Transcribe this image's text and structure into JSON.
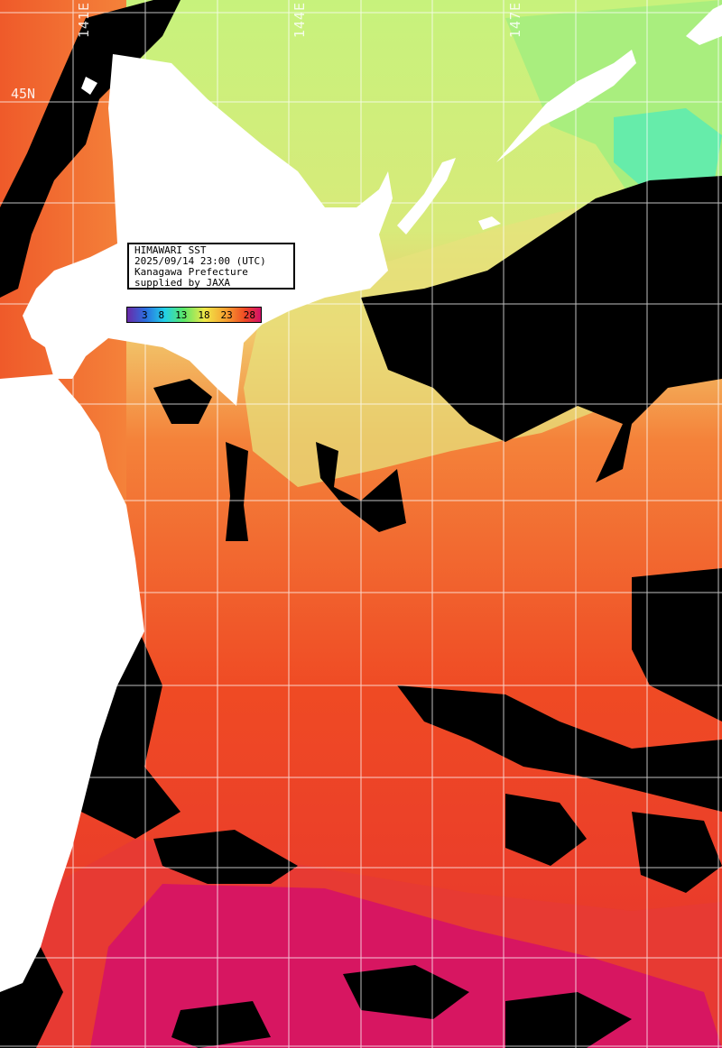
{
  "map": {
    "info_lines": [
      "HIMAWARI SST",
      "2025/09/14 23:00 (UTC)",
      "Kanagawa Prefecture",
      "supplied by JAXA"
    ],
    "colorbar": {
      "ticks": [
        "3",
        "8",
        "13",
        "18",
        "23",
        "28"
      ]
    },
    "graticule": {
      "longitude_labels": [
        "141E",
        "144E",
        "147E"
      ],
      "latitude_labels": [
        "45N"
      ]
    },
    "colors": {
      "land": "#ffffff",
      "no_data_cloud": "#000000",
      "grid": "#ffffff",
      "sst_very_warm": "#d4106a",
      "sst_warm": "#ef4a24",
      "sst_mid": "#f4823a",
      "sst_mild": "#f2c56a",
      "sst_cool": "#c7f27c",
      "sst_cold": "#66ecaa"
    }
  }
}
